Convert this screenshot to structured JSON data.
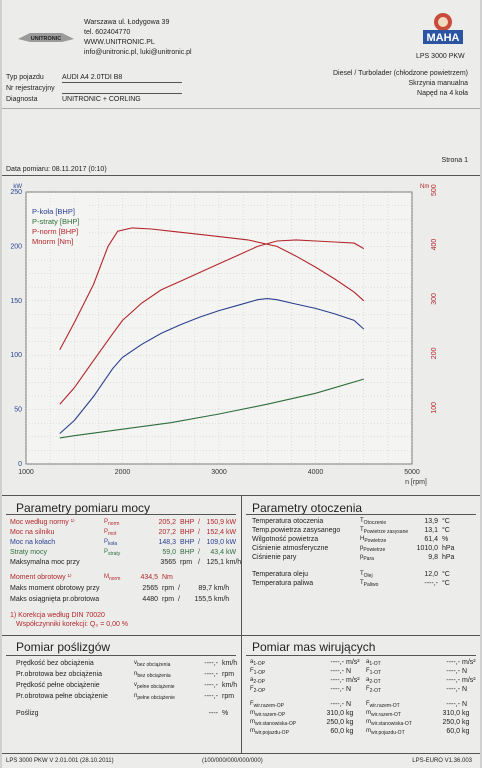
{
  "header": {
    "address_line1": "Warszawa ul. Łodygowa 39",
    "address_line2": "tel. 602404770",
    "address_line3": "WWW.UNITRONIC.PL",
    "address_line4": "info@unitronic.pl, luki@unitronic.pl",
    "brand_left": "UNITRONIC",
    "brand_right": "MAHA",
    "brand_right_sub": "LPS 3000 PKW"
  },
  "vehicle": {
    "type_label": "Typ pojazdu",
    "type_value": "AUDI A4 2.0TDI B8",
    "reg_label": "Nr rejestracyjny",
    "reg_value": "",
    "diag_label": "Diagnosta",
    "diag_value": "UNITRONIC + CORLING",
    "engine": "Diesel / Turbolader (chłodzone powietrzem)",
    "gearbox": "Skrzynia manualna",
    "drive": "Napęd na 4 koła"
  },
  "measure": {
    "date_label": "Data pomiaru: 08.11.2017 (0:10)",
    "page_label": "Strona 1"
  },
  "chart_data": {
    "type": "line",
    "x_label": "n [rpm]",
    "xlim": [
      1000,
      5000
    ],
    "x_ticks": [
      1000,
      2000,
      3000,
      4000,
      5000
    ],
    "y_left_label": "kW",
    "y_left_lim": [
      0,
      250
    ],
    "y_left_ticks": [
      0,
      50,
      100,
      150,
      200,
      250
    ],
    "y_right_label": "Nm",
    "y_right_lim": [
      0,
      500
    ],
    "y_right_ticks": [
      100,
      200,
      300,
      400,
      500
    ],
    "grid": true,
    "legend_position": "top-left",
    "series": [
      {
        "name": "P-koła [BHP]",
        "color": "#2a3f8f",
        "axis": "left",
        "x": [
          1350,
          1500,
          1700,
          1900,
          2000,
          2200,
          2400,
          2600,
          2800,
          3000,
          3200,
          3400,
          3500,
          3600,
          3800,
          4000,
          4200,
          4400,
          4500
        ],
        "y": [
          28,
          40,
          62,
          88,
          98,
          110,
          120,
          128,
          135,
          141,
          146,
          151,
          152,
          151,
          147,
          143,
          138,
          132,
          124
        ]
      },
      {
        "name": "P-straty [BHP]",
        "color": "#2f6d3a",
        "axis": "left",
        "x": [
          1350,
          1500,
          2000,
          2500,
          3000,
          3500,
          4000,
          4500
        ],
        "y": [
          24,
          26,
          32,
          38,
          46,
          55,
          65,
          78
        ]
      },
      {
        "name": "P-norm [BHP]",
        "color": "#b3262b",
        "axis": "left",
        "x": [
          1350,
          1500,
          1700,
          1900,
          2000,
          2200,
          2400,
          2600,
          2800,
          3000,
          3200,
          3400,
          3600,
          3800,
          4000,
          4200,
          4400,
          4500
        ],
        "y": [
          55,
          70,
          95,
          120,
          132,
          148,
          160,
          168,
          176,
          184,
          192,
          200,
          205,
          206,
          205,
          204,
          203,
          198
        ]
      },
      {
        "name": "Mnorm [Nm]",
        "color": "#b3262b",
        "axis": "right",
        "x": [
          1350,
          1500,
          1700,
          1850,
          1950,
          2100,
          2300,
          2500,
          2700,
          3000,
          3300,
          3600,
          3800,
          4000,
          4200,
          4400,
          4500
        ],
        "y": [
          210,
          260,
          330,
          400,
          428,
          434,
          432,
          428,
          424,
          418,
          412,
          400,
          382,
          362,
          340,
          316,
          300
        ]
      }
    ]
  },
  "power_params": {
    "title": "Parametry pomiaru mocy",
    "rows": [
      {
        "label": "Moc według normy ¹⁾",
        "sym": "P_norm",
        "v1": "205,2",
        "u1": "BHP",
        "sep": "/",
        "v2": "150,9",
        "u2": "kW",
        "cls": "red"
      },
      {
        "label": "Moc na silniku",
        "sym": "P_mot",
        "v1": "207,2",
        "u1": "BHP",
        "sep": "/",
        "v2": "152,4",
        "u2": "kW",
        "cls": "red"
      },
      {
        "label": "Moc na kołach",
        "sym": "P_koła",
        "v1": "148,3",
        "u1": "BHP",
        "sep": "/",
        "v2": "109,0",
        "u2": "kW",
        "cls": "blue"
      },
      {
        "label": "Straty mocy",
        "sym": "P_straty",
        "v1": "59,0",
        "u1": "BHP",
        "sep": "/",
        "v2": "43,4",
        "u2": "kW",
        "cls": "green"
      },
      {
        "label": "Maksymalna moc przy",
        "sym": "",
        "v1": "3565",
        "u1": "rpm",
        "sep": "/",
        "v2": "125,1",
        "u2": "km/h",
        "cls": ""
      }
    ],
    "torque_rows": [
      {
        "label": "Moment obrotowy ¹⁾",
        "sym": "M_norm",
        "v1": "434,5",
        "u1": "Nm",
        "cls": "red"
      },
      {
        "label": "Maks moment obrotowy przy",
        "sym": "",
        "v1": "2565",
        "u1": "rpm",
        "sep": "/",
        "v2": "89,7",
        "u2": "km/h",
        "cls": ""
      },
      {
        "label": "Maks osiągnięta pr.obrotowa",
        "sym": "",
        "v1": "4480",
        "u1": "rpm",
        "sep": "/",
        "v2": "155,5",
        "u2": "km/h",
        "cls": ""
      }
    ],
    "correction_line1": "1) Korekcja według DIN 70020",
    "correction_line2": "Współczynniki korekcji: Q₀ = 0,00 %"
  },
  "env_params": {
    "title": "Parametry otoczenia",
    "rows": [
      {
        "label": "Temperatura otoczenia",
        "sym": "T_Otoczenie",
        "val": "13,9",
        "unit": "°C"
      },
      {
        "label": "Temp.powietrza zasysanego",
        "sym": "T_Powietrze zasysane",
        "val": "13,1",
        "unit": "°C"
      },
      {
        "label": "Wilgotność powietrza",
        "sym": "H_Powietrze",
        "val": "61,4",
        "unit": "%"
      },
      {
        "label": "Ciśnienie atmosferyczne",
        "sym": "p_Powietrze",
        "val": "1010,0",
        "unit": "hPa"
      },
      {
        "label": "Ciśnienie pary",
        "sym": "p_Para",
        "val": "9,8",
        "unit": "hPa"
      },
      {
        "label": "Temperatura oleju",
        "sym": "T_Olej",
        "val": "12,0",
        "unit": "°C"
      },
      {
        "label": "Temperatura paliwa",
        "sym": "T_Paliwo",
        "val": "----,-",
        "unit": "°C"
      }
    ]
  },
  "sub_params": {
    "title": "Pomiar poślizgów",
    "rows": [
      {
        "label": "Prędkość bez obciążenia",
        "sym": "v_bez obciążenia",
        "val": "----,-",
        "unit": "km/h"
      },
      {
        "label": "Pr.obrotowa bez obciążenia",
        "sym": "n_bez obciążenia",
        "val": "----,-",
        "unit": "rpm"
      },
      {
        "label": "Prędkość pełne obciążenie",
        "sym": "v_pełne obciążenie",
        "val": "----,-",
        "unit": "km/h"
      },
      {
        "label": "Pr.obrotowa pełne obciążenie",
        "sym": "n_pełne obciążenie",
        "val": "----,-",
        "unit": "rpm"
      },
      {
        "label": "Poślizg",
        "sym": "",
        "val": "----",
        "unit": "%"
      }
    ]
  },
  "mass_params": {
    "title": "Pomiar mas wirujących",
    "left": [
      {
        "sym": "a_1-OP",
        "val": "----,-",
        "unit": "m/s²"
      },
      {
        "sym": "F_1-OP",
        "val": "----,-",
        "unit": "N"
      },
      {
        "sym": "a_2-OP",
        "val": "----,-",
        "unit": "m/s²"
      },
      {
        "sym": "F_2-OP",
        "val": "----,-",
        "unit": "N"
      },
      {
        "sym": "F_wir.razem-OP",
        "val": "----,-",
        "unit": "N"
      },
      {
        "sym": "m_wir.razem-OP",
        "val": "310,0",
        "unit": "kg"
      },
      {
        "sym": "m_wir.stanowiska-OP",
        "val": "250,0",
        "unit": "kg"
      },
      {
        "sym": "m_wir.pojazdu-OP",
        "val": "60,0",
        "unit": "kg"
      }
    ],
    "right": [
      {
        "sym": "a_1-OT",
        "val": "----,-",
        "unit": "m/s²"
      },
      {
        "sym": "F_1-OT",
        "val": "----,-",
        "unit": "N"
      },
      {
        "sym": "a_2-OT",
        "val": "----,-",
        "unit": "m/s²"
      },
      {
        "sym": "F_2-OT",
        "val": "----,-",
        "unit": "N"
      },
      {
        "sym": "F_wir.razem-OT",
        "val": "----,-",
        "unit": "N"
      },
      {
        "sym": "m_wir.razem-OT",
        "val": "310,0",
        "unit": "kg"
      },
      {
        "sym": "m_wir.stanowiska-OT",
        "val": "250,0",
        "unit": "kg"
      },
      {
        "sym": "m_wir.pojazdu-OT",
        "val": "60,0",
        "unit": "kg"
      }
    ]
  },
  "footer": {
    "left": "LPS 3000 PKW V 2.01.001 (28.10.2011)",
    "mid": "(100/000/000/000/000)",
    "right": "LPS-EURO V1.36.003"
  }
}
